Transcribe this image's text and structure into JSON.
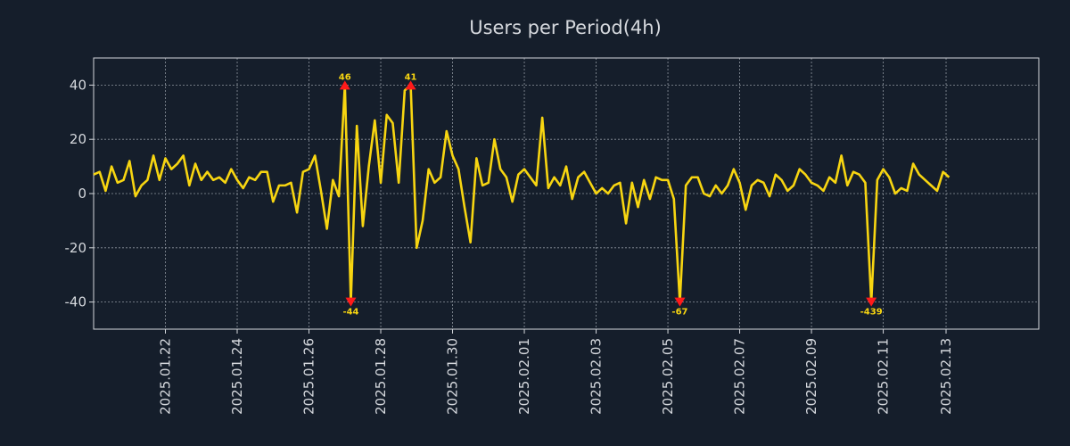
{
  "chart_data": {
    "type": "line",
    "title": "Users per Period(4h)",
    "xlabel": "",
    "ylabel": "",
    "ylim": [
      -50,
      50
    ],
    "xlim": [
      0,
      158
    ],
    "grid": true,
    "colors": {
      "background": "#151e2b",
      "line": "#f7d511",
      "marker": "#ff1a1a",
      "text": "#d5d8dd",
      "axis": "#d5d8dd",
      "grid": "#8f96a0"
    },
    "y_ticks": [
      -40,
      -20,
      0,
      20,
      40
    ],
    "x_ticks": [
      {
        "x": 12,
        "label": "2025.01.22"
      },
      {
        "x": 24,
        "label": "2025.01.24"
      },
      {
        "x": 36,
        "label": "2025.01.26"
      },
      {
        "x": 48,
        "label": "2025.01.28"
      },
      {
        "x": 60,
        "label": "2025.01.30"
      },
      {
        "x": 72,
        "label": "2025.02.01"
      },
      {
        "x": 84,
        "label": "2025.02.03"
      },
      {
        "x": 96,
        "label": "2025.02.05"
      },
      {
        "x": 108,
        "label": "2025.02.07"
      },
      {
        "x": 120,
        "label": "2025.02.09"
      },
      {
        "x": 132,
        "label": "2025.02.11"
      },
      {
        "x": 142.5,
        "label": "2025.02.13"
      }
    ],
    "series": [
      {
        "name": "Users",
        "values": [
          7,
          8,
          1,
          10,
          4,
          5,
          12,
          -1,
          3,
          5,
          14,
          5,
          13,
          9,
          11,
          14,
          3,
          11,
          5,
          8,
          5,
          6,
          4,
          9,
          5,
          2,
          6,
          5,
          8,
          8,
          -3,
          3,
          3,
          4,
          -7,
          8,
          9,
          14,
          1,
          -13,
          5,
          -1,
          40,
          -40,
          25,
          -12,
          10,
          27,
          4,
          29,
          26,
          4,
          38,
          40,
          -20,
          -10,
          9,
          4,
          6,
          23,
          14,
          9,
          -5,
          -18,
          13,
          3,
          4,
          20,
          9,
          6,
          -3,
          7,
          9,
          6,
          3,
          28,
          2,
          6,
          3,
          10,
          -2,
          6,
          8,
          4,
          0,
          2,
          0,
          3,
          4,
          -11,
          4,
          -5,
          5,
          -2,
          6,
          5,
          5,
          -2,
          -40,
          3,
          6,
          6,
          0,
          -1,
          3,
          0,
          3,
          9,
          4,
          -6,
          3,
          5,
          4,
          -1,
          7,
          5,
          1,
          3,
          9,
          7,
          4,
          3,
          1,
          6,
          4,
          14,
          3,
          8,
          7,
          4,
          -40,
          5,
          9,
          6,
          0,
          2,
          1,
          11,
          7,
          5,
          3,
          1,
          8,
          6
        ]
      }
    ],
    "annotations": [
      {
        "index": 42,
        "value": 40,
        "label": "46",
        "position": "above"
      },
      {
        "index": 53,
        "value": 40,
        "label": "41",
        "position": "above"
      },
      {
        "index": 43,
        "value": -40,
        "label": "-44",
        "position": "below"
      },
      {
        "index": 98,
        "value": -40,
        "label": "-67",
        "position": "below"
      },
      {
        "index": 130,
        "value": -40,
        "label": "-439",
        "position": "below"
      }
    ]
  }
}
